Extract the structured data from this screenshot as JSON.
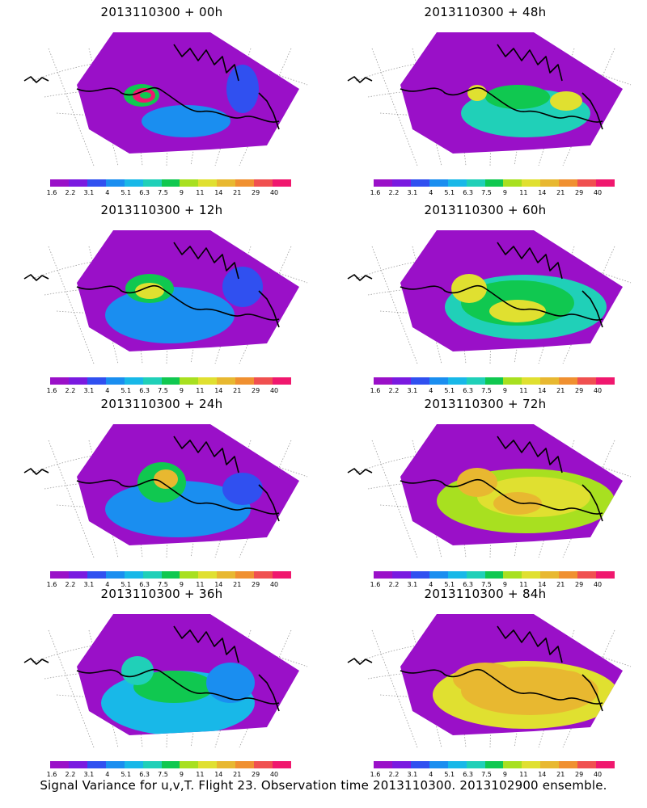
{
  "panels": [
    {
      "title": "2013110300 + 00h"
    },
    {
      "title": "2013110300 + 48h"
    },
    {
      "title": "2013110300 + 12h"
    },
    {
      "title": "2013110300 + 60h"
    },
    {
      "title": "2013110300 + 24h"
    },
    {
      "title": "2013110300 + 72h"
    },
    {
      "title": "2013110300 + 36h"
    },
    {
      "title": "2013110300 + 84h"
    }
  ],
  "colorbar": {
    "labels": [
      "1.6",
      "2.2",
      "3.1",
      "4",
      "5.1",
      "6.3",
      "7.5",
      "9",
      "11",
      "14",
      "21",
      "29",
      "40"
    ],
    "colors": [
      "#9a10c8",
      "#7a1ae0",
      "#3050f0",
      "#1a8ef0",
      "#18b8e8",
      "#20d0b8",
      "#10c850",
      "#a8e020",
      "#e0e030",
      "#e8b830",
      "#f09030",
      "#f05050",
      "#f0186e"
    ]
  },
  "footer": "Signal Variance for u,v,T. Flight 23. Observation time 2013110300. 2013102900 ensemble."
}
